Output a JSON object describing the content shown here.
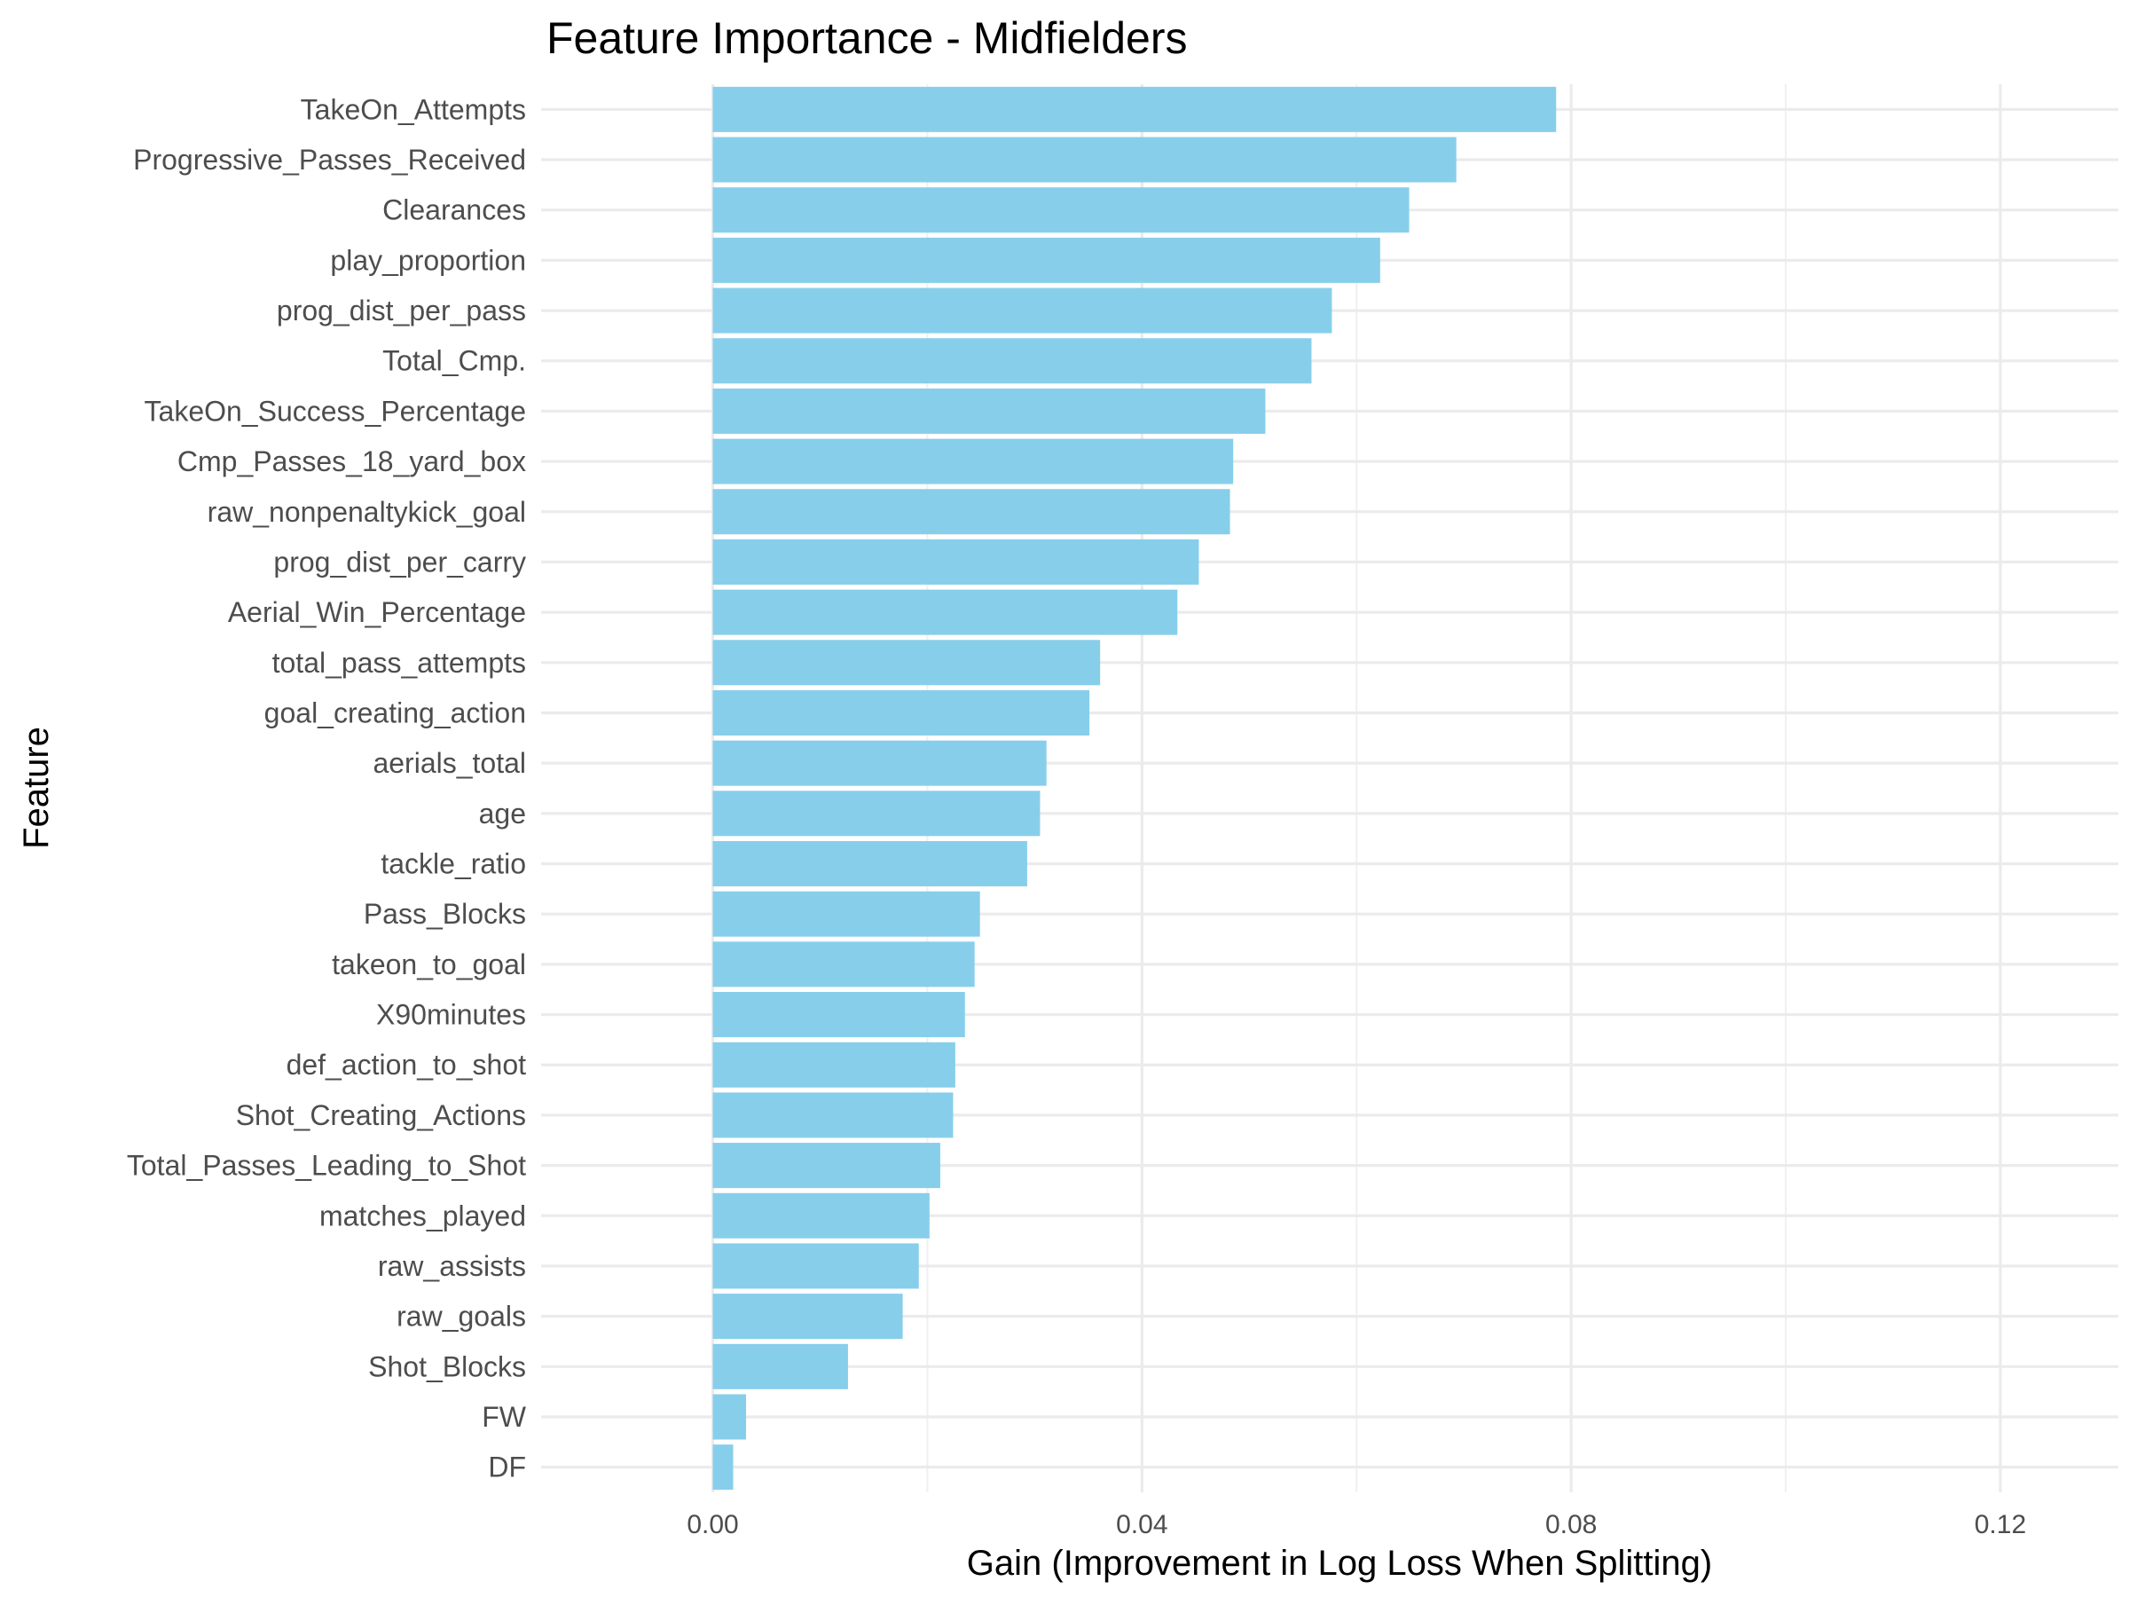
{
  "chart_data": {
    "type": "bar",
    "orientation": "horizontal",
    "title": "Feature Importance - Midfielders",
    "xlabel": "Gain (Improvement in Log Loss When Splitting)",
    "ylabel": "Feature",
    "xlim": [
      -0.016,
      0.131
    ],
    "xticks": [
      0.0,
      0.04,
      0.08,
      0.12
    ],
    "xtick_labels": [
      "0.00",
      "0.04",
      "0.08",
      "0.12"
    ],
    "grid": true,
    "bar_color": "#87CEEB",
    "categories": [
      "TakeOn_Attempts",
      "Progressive_Passes_Received",
      "Clearances",
      "play_proportion",
      "prog_dist_per_pass",
      "Total_Cmp.",
      "TakeOn_Success_Percentage",
      "Cmp_Passes_18_yard_box",
      "raw_nonpenaltykick_goal",
      "prog_dist_per_carry",
      "Aerial_Win_Percentage",
      "total_pass_attempts",
      "goal_creating_action",
      "aerials_total",
      "age",
      "tackle_ratio",
      "Pass_Blocks",
      "takeon_to_goal",
      "X90minutes",
      "def_action_to_shot",
      "Shot_Creating_Actions",
      "Total_Passes_Leading_to_Shot",
      "matches_played",
      "raw_assists",
      "raw_goals",
      "Shot_Blocks",
      "FW",
      "DF"
    ],
    "values": [
      0.0786,
      0.0693,
      0.0649,
      0.0622,
      0.0577,
      0.0558,
      0.0515,
      0.0485,
      0.0482,
      0.0453,
      0.0433,
      0.0361,
      0.0351,
      0.0311,
      0.0305,
      0.0293,
      0.0249,
      0.0244,
      0.0235,
      0.0226,
      0.0224,
      0.0212,
      0.0202,
      0.0192,
      0.0177,
      0.0126,
      0.0031,
      0.0019
    ]
  }
}
